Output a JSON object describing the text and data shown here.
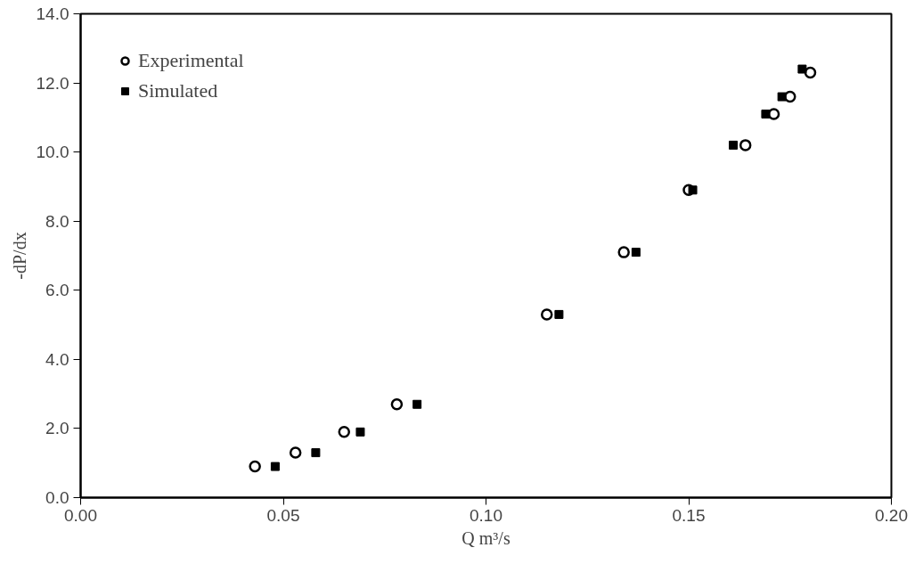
{
  "chart_data": {
    "type": "scatter",
    "xlabel": "Q m³/s",
    "ylabel": "-dP/dx",
    "xlim": [
      0,
      0.2
    ],
    "ylim": [
      0,
      14
    ],
    "xticks": [
      {
        "value": 0,
        "label": "0.00"
      },
      {
        "value": 0.05,
        "label": "0.05"
      },
      {
        "value": 0.1,
        "label": "0.10"
      },
      {
        "value": 0.15,
        "label": "0.15"
      },
      {
        "value": 0.2,
        "label": "0.20"
      }
    ],
    "yticks": [
      {
        "value": 0,
        "label": "0.0"
      },
      {
        "value": 2,
        "label": "2.0"
      },
      {
        "value": 4,
        "label": "4.0"
      },
      {
        "value": 6,
        "label": "6.0"
      },
      {
        "value": 8,
        "label": "8.0"
      },
      {
        "value": 10,
        "label": "10.0"
      },
      {
        "value": 12,
        "label": "12.0"
      },
      {
        "value": 14,
        "label": "14.0"
      }
    ],
    "grid": false,
    "legend": "top left",
    "series": [
      {
        "name": "Experimental",
        "color": "#000000",
        "marker": "circle",
        "x": [
          0.043,
          0.053,
          0.065,
          0.078,
          0.115,
          0.134,
          0.15,
          0.164,
          0.171,
          0.175,
          0.18
        ],
        "values": [
          0.9,
          1.3,
          1.9,
          2.7,
          5.3,
          7.1,
          8.9,
          10.2,
          11.1,
          11.6,
          12.3
        ]
      },
      {
        "name": "Simulated",
        "color": "#000000",
        "marker": "square",
        "x": [
          0.048,
          0.058,
          0.069,
          0.083,
          0.118,
          0.137,
          0.151,
          0.161,
          0.169,
          0.173,
          0.178
        ],
        "values": [
          0.9,
          1.3,
          1.9,
          2.7,
          5.3,
          7.1,
          8.9,
          10.2,
          11.1,
          11.6,
          12.4
        ]
      }
    ]
  }
}
